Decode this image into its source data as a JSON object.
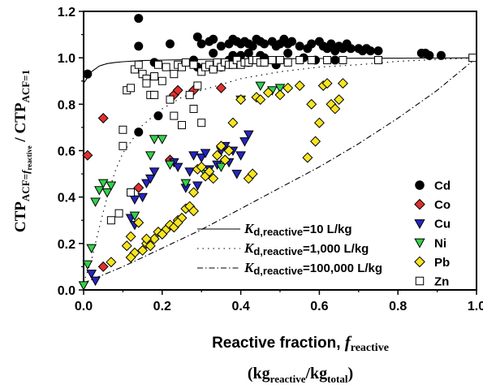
{
  "chart_data": {
    "type": "scatter",
    "xlim": [
      0,
      1.0
    ],
    "ylim": [
      0,
      1.2
    ],
    "x_ticks": [
      "0.0",
      "0.2",
      "0.4",
      "0.6",
      "0.8",
      "1.0"
    ],
    "y_ticks": [
      "0.0",
      "0.2",
      "0.4",
      "0.6",
      "0.8",
      "1.0",
      "1.2"
    ],
    "xlabel": {
      "main": "Reactive fraction, ",
      "var": "f",
      "var_sub": "reactive",
      "unit_open": "(kg",
      "unit_sub1": "reactive",
      "unit_mid": "/kg",
      "unit_sub2": "total",
      "unit_close": ")"
    },
    "ylabel": {
      "a": "CTP",
      "a_sub": "ACF=",
      "a_sub_var": "f",
      "a_sub_var_sub": "reactive",
      "slash": " / CTP",
      "b_sub": "ACF=1"
    },
    "grid": false,
    "legend_position": "right",
    "series": [
      {
        "name": "Cd",
        "marker": "circle",
        "color": "#000000",
        "x": [
          0.01,
          0.14,
          0.14,
          0.22,
          0.29,
          0.3,
          0.32,
          0.33,
          0.35,
          0.37,
          0.38,
          0.39,
          0.4,
          0.41,
          0.42,
          0.43,
          0.44,
          0.45,
          0.46,
          0.48,
          0.49,
          0.5,
          0.51,
          0.52,
          0.53,
          0.55,
          0.57,
          0.58,
          0.6,
          0.61,
          0.62,
          0.63,
          0.64,
          0.65,
          0.66,
          0.67,
          0.68,
          0.7,
          0.71,
          0.72,
          0.73,
          0.75,
          0.86,
          0.87,
          0.88,
          0.91,
          0.14,
          0.18,
          0.19,
          0.28,
          0.29,
          0.35,
          0.37,
          0.4,
          0.42,
          0.46,
          0.49,
          0.56,
          0.59,
          0.64,
          0.42,
          0.45,
          0.52,
          0.33,
          0.38
        ],
        "y": [
          0.93,
          1.17,
          1.05,
          1.06,
          1.09,
          1.06,
          1.07,
          1.08,
          1.05,
          1.06,
          1.08,
          1.07,
          1.06,
          1.07,
          1.06,
          1.05,
          1.08,
          1.07,
          1.06,
          1.07,
          1.05,
          1.06,
          1.08,
          1.06,
          1.07,
          1.05,
          1.04,
          1.06,
          1.07,
          1.05,
          1.04,
          1.06,
          1.03,
          1.05,
          1.04,
          1.06,
          1.04,
          1.04,
          1.03,
          1.04,
          1.03,
          1.03,
          1.02,
          1.02,
          1.01,
          1.01,
          0.68,
          0.98,
          0.75,
          0.99,
          0.96,
          0.96,
          0.99,
          1.01,
          0.98,
          1.0,
          0.97,
          1.0,
          0.99,
          0.99,
          1.02,
          1.01,
          1.02,
          1.02,
          1.01
        ]
      },
      {
        "name": "Co",
        "marker": "diamond",
        "color": "#e03030",
        "x": [
          0.01,
          0.05,
          0.05,
          0.14,
          0.22,
          0.23,
          0.24,
          0.28,
          0.35
        ],
        "y": [
          0.58,
          0.74,
          0.1,
          0.44,
          0.56,
          0.84,
          0.86,
          0.86,
          0.87
        ]
      },
      {
        "name": "Cu",
        "marker": "triangle-down",
        "color": "#2525c0",
        "x": [
          0.02,
          0.03,
          0.12,
          0.13,
          0.13,
          0.15,
          0.16,
          0.17,
          0.18,
          0.23,
          0.24,
          0.26,
          0.27,
          0.28,
          0.29,
          0.3,
          0.31,
          0.32,
          0.34,
          0.35,
          0.36,
          0.37,
          0.38,
          0.39,
          0.4,
          0.41,
          0.42
        ],
        "y": [
          0.07,
          0.04,
          0.31,
          0.39,
          0.28,
          0.4,
          0.46,
          0.48,
          0.51,
          0.55,
          0.53,
          0.44,
          0.51,
          0.58,
          0.45,
          0.57,
          0.59,
          0.52,
          0.54,
          0.6,
          0.62,
          0.55,
          0.6,
          0.5,
          0.58,
          0.64,
          0.67
        ]
      },
      {
        "name": "Ni",
        "marker": "triangle-down",
        "color": "#33d24a",
        "x": [
          0.0,
          0.01,
          0.02,
          0.03,
          0.04,
          0.05,
          0.06,
          0.07,
          0.13,
          0.17,
          0.18,
          0.2,
          0.22,
          0.26,
          0.31,
          0.35,
          0.4,
          0.45,
          0.48,
          0.5
        ],
        "y": [
          0.02,
          0.11,
          0.18,
          0.38,
          0.43,
          0.46,
          0.42,
          0.45,
          0.32,
          0.58,
          0.65,
          0.65,
          0.54,
          0.46,
          0.5,
          0.53,
          0.82,
          0.88,
          0.86,
          0.87
        ]
      },
      {
        "name": "Pb",
        "marker": "diamond",
        "color": "#f7e520",
        "x": [
          0.07,
          0.11,
          0.12,
          0.13,
          0.14,
          0.15,
          0.16,
          0.17,
          0.18,
          0.19,
          0.2,
          0.21,
          0.22,
          0.23,
          0.24,
          0.25,
          0.26,
          0.27,
          0.28,
          0.29,
          0.3,
          0.31,
          0.32,
          0.33,
          0.34,
          0.35,
          0.36,
          0.37,
          0.38,
          0.4,
          0.42,
          0.43,
          0.44,
          0.45,
          0.47,
          0.5,
          0.52,
          0.55,
          0.57,
          0.58,
          0.59,
          0.6,
          0.61,
          0.62,
          0.63,
          0.64,
          0.65,
          0.66,
          0.12,
          0.16,
          0.2,
          0.24,
          0.28
        ],
        "y": [
          0.12,
          0.19,
          0.23,
          0.16,
          0.29,
          0.17,
          0.2,
          0.19,
          0.22,
          0.25,
          0.24,
          0.26,
          0.28,
          0.27,
          0.3,
          0.31,
          0.35,
          0.36,
          0.42,
          0.52,
          0.53,
          0.49,
          0.51,
          0.48,
          0.58,
          0.62,
          0.56,
          0.6,
          0.72,
          0.82,
          0.48,
          0.5,
          0.83,
          0.82,
          0.85,
          0.84,
          0.87,
          0.88,
          0.57,
          0.8,
          0.64,
          0.72,
          0.88,
          0.89,
          0.8,
          0.78,
          0.82,
          0.89,
          0.14,
          0.22,
          0.24,
          0.29,
          0.34
        ]
      },
      {
        "name": "Zn",
        "marker": "square",
        "color": "#ffffff",
        "x": [
          0.07,
          0.09,
          0.1,
          0.11,
          0.12,
          0.13,
          0.14,
          0.15,
          0.16,
          0.17,
          0.18,
          0.19,
          0.2,
          0.21,
          0.22,
          0.23,
          0.24,
          0.25,
          0.26,
          0.27,
          0.28,
          0.29,
          0.3,
          0.31,
          0.32,
          0.33,
          0.34,
          0.35,
          0.36,
          0.37,
          0.38,
          0.39,
          0.4,
          0.41,
          0.42,
          0.43,
          0.44,
          0.45,
          0.46,
          0.48,
          0.5,
          0.52,
          0.55,
          0.58,
          0.62,
          0.66,
          0.75,
          0.99,
          0.1,
          0.12,
          0.16,
          0.18,
          0.23,
          0.25,
          0.28,
          0.3
        ],
        "y": [
          0.3,
          0.33,
          0.69,
          0.86,
          0.87,
          0.95,
          0.97,
          0.93,
          0.91,
          0.84,
          0.92,
          0.97,
          0.9,
          0.96,
          0.82,
          0.93,
          0.97,
          0.96,
          0.98,
          0.84,
          0.97,
          0.88,
          0.94,
          0.96,
          0.97,
          0.95,
          0.98,
          0.96,
          0.98,
          0.97,
          0.97,
          0.99,
          0.97,
          0.98,
          0.98,
          0.99,
          0.99,
          0.98,
          0.98,
          0.99,
          0.99,
          0.98,
          0.99,
          0.99,
          0.99,
          0.99,
          0.99,
          1.0,
          0.62,
          0.42,
          0.89,
          0.84,
          0.75,
          0.71,
          0.78,
          0.72
        ]
      }
    ],
    "lines": [
      {
        "name_prefix": "K",
        "name_sub": "d,reactive",
        "name_suffix": "=10 L/kg",
        "style": "solid",
        "x": [
          0,
          0.02,
          0.04,
          0.06,
          0.08,
          0.1,
          0.15,
          0.2,
          0.3,
          0.4,
          0.5,
          0.6,
          0.7,
          0.8,
          0.9,
          1.0
        ],
        "y": [
          0.89,
          0.94,
          0.965,
          0.975,
          0.98,
          0.983,
          0.988,
          0.99,
          0.993,
          0.995,
          0.996,
          0.997,
          0.998,
          0.998,
          0.999,
          1.0
        ]
      },
      {
        "name_prefix": "K",
        "name_sub": "d,reactive",
        "name_suffix": "=1,000 L/kg",
        "style": "dotted",
        "x": [
          0,
          0.02,
          0.04,
          0.06,
          0.08,
          0.1,
          0.15,
          0.2,
          0.25,
          0.3,
          0.4,
          0.5,
          0.6,
          0.7,
          0.8,
          0.9,
          1.0
        ],
        "y": [
          0.03,
          0.13,
          0.27,
          0.4,
          0.51,
          0.59,
          0.71,
          0.78,
          0.83,
          0.86,
          0.91,
          0.94,
          0.96,
          0.97,
          0.985,
          0.993,
          1.0
        ]
      },
      {
        "name_prefix": "K",
        "name_sub": "d,reactive",
        "name_suffix": "=100,000 L/kg",
        "style": "dashdot",
        "x": [
          0,
          0.1,
          0.2,
          0.3,
          0.4,
          0.5,
          0.6,
          0.7,
          0.8,
          0.9,
          1.0
        ],
        "y": [
          0.03,
          0.1,
          0.18,
          0.26,
          0.35,
          0.44,
          0.53,
          0.63,
          0.74,
          0.86,
          1.0
        ]
      }
    ]
  }
}
